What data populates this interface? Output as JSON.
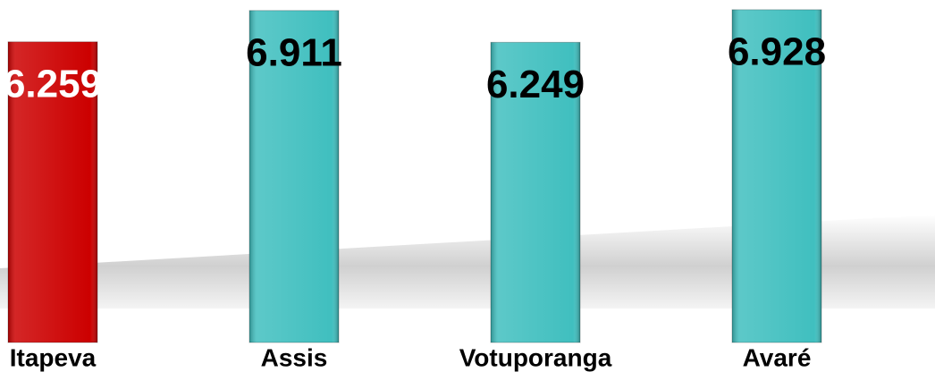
{
  "chart_data": {
    "type": "bar",
    "categories": [
      "Itapeva",
      "Assis",
      "Votuporanga",
      "Avaré"
    ],
    "values": [
      6.259,
      6.911,
      6.249,
      6.928
    ],
    "colors": [
      "#cc0000",
      "#40bfbf",
      "#40bfbf",
      "#40bfbf"
    ],
    "label_colors": [
      "#ffffff",
      "#000000",
      "#000000",
      "#000000"
    ],
    "ylim": [
      0,
      7
    ]
  }
}
